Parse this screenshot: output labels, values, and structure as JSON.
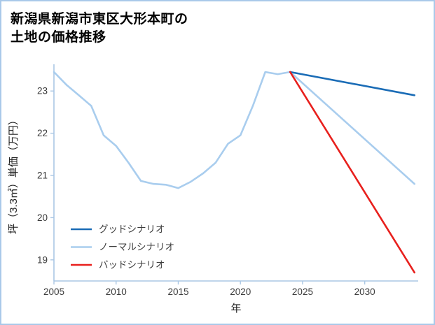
{
  "page": {
    "title_line1": "新潟県新潟市東区大形本町の",
    "title_line2": "土地の価格推移"
  },
  "chart_data": {
    "type": "line",
    "title": "新潟県新潟市東区大形本町の土地の価格推移",
    "xlabel": "年",
    "ylabel": "坪（3.3㎡）単価（万円）",
    "xlim": [
      2005,
      2034.3
    ],
    "ylim": [
      18.5,
      23.55
    ],
    "xticks": [
      2005,
      2010,
      2015,
      2020,
      2025,
      2030
    ],
    "yticks": [
      19,
      20,
      21,
      22,
      23
    ],
    "grid": false,
    "axis_color": "#aac7e4",
    "tick_text_color": "#3a3a3a",
    "label_text_color": "#222222",
    "legend_position": "lower-left",
    "series": [
      {
        "id": "normal",
        "name": "ノーマルシナリオ",
        "color": "#a9cdee",
        "x": [
          2005,
          2006,
          2007,
          2008,
          2009,
          2010,
          2011,
          2012,
          2013,
          2014,
          2015,
          2016,
          2017,
          2018,
          2019,
          2020,
          2021,
          2022,
          2023,
          2024,
          2034
        ],
        "y": [
          23.45,
          23.15,
          22.9,
          22.65,
          21.95,
          21.7,
          21.3,
          20.87,
          20.8,
          20.78,
          20.7,
          20.85,
          21.05,
          21.3,
          21.75,
          21.95,
          22.65,
          23.45,
          23.4,
          23.45,
          20.8
        ]
      },
      {
        "id": "good",
        "name": "グッドシナリオ",
        "color": "#1a6cb6",
        "x": [
          2024,
          2034
        ],
        "y": [
          23.45,
          22.9
        ]
      },
      {
        "id": "bad",
        "name": "バッドシナリオ",
        "color": "#e8201d",
        "x": [
          2024,
          2034
        ],
        "y": [
          23.45,
          18.7
        ]
      }
    ],
    "legend": [
      {
        "series": "good",
        "label": "グッドシナリオ",
        "color": "#1a6cb6"
      },
      {
        "series": "normal",
        "label": "ノーマルシナリオ",
        "color": "#a9cdee"
      },
      {
        "series": "bad",
        "label": "バッドシナリオ",
        "color": "#e8201d"
      }
    ]
  }
}
